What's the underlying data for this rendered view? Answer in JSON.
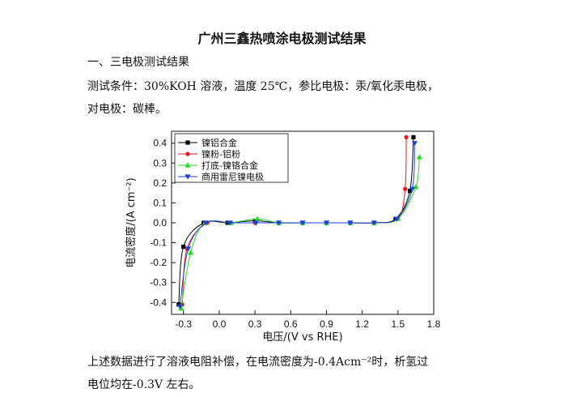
{
  "document": {
    "title": "广州三鑫热喷涂电极测试结果",
    "section_heading": "一、三电极测试结果",
    "conditions_line1": "测试条件：30%KOH 溶液，温度 25℃，参比电极：汞/氧化汞电极，",
    "conditions_line2": "对电极：碳棒。",
    "conclusion_line1": "上述数据进行了溶液电阻补偿，在电流密度为-0.4Acm⁻²时，析氢过",
    "conclusion_line2": "电位均在-0.3V 左右。"
  },
  "chart_data": {
    "type": "line",
    "xlabel": "电压/(V vs RHE)",
    "ylabel": "电流密度/(A cm⁻²)",
    "xlim": [
      -0.4,
      1.8
    ],
    "ylim": [
      -0.46,
      0.46
    ],
    "x_ticks": [
      -0.3,
      0.0,
      0.3,
      0.6,
      0.9,
      1.2,
      1.5,
      1.8
    ],
    "x_tick_labels": [
      "-0.3",
      "0.0",
      "0.3",
      "0.6",
      "0.9",
      "1.2",
      "1.5",
      "1.8"
    ],
    "y_ticks": [
      -0.4,
      -0.3,
      -0.2,
      -0.1,
      0.0,
      0.1,
      0.2,
      0.3,
      0.4
    ],
    "y_tick_labels": [
      "-0.4",
      "-0.3",
      "-0.2",
      "-0.1",
      "0.0",
      "0.1",
      "0.2",
      "0.3",
      "0.4"
    ],
    "legend_position": "top-left",
    "series": [
      {
        "name": "镍铝合金",
        "color": "#000000",
        "marker": "square",
        "points": [
          [
            -0.34,
            -0.41
          ],
          [
            -0.3,
            -0.12
          ],
          [
            -0.13,
            0.0
          ],
          [
            0.07,
            0.0
          ],
          [
            0.3,
            0.01
          ],
          [
            0.5,
            0.0
          ],
          [
            0.7,
            0.0
          ],
          [
            0.9,
            0.0
          ],
          [
            1.1,
            0.0
          ],
          [
            1.3,
            0.0
          ],
          [
            1.48,
            0.02
          ],
          [
            1.6,
            0.16
          ],
          [
            1.63,
            0.43
          ]
        ]
      },
      {
        "name": "镍粉-铝粉",
        "color": "#e31a1c",
        "marker": "circle",
        "points": [
          [
            -0.31,
            -0.41
          ],
          [
            -0.27,
            -0.13
          ],
          [
            -0.1,
            0.0
          ],
          [
            0.1,
            0.0
          ],
          [
            0.3,
            0.0
          ],
          [
            0.5,
            0.0
          ],
          [
            0.7,
            0.0
          ],
          [
            0.9,
            0.0
          ],
          [
            1.1,
            0.0
          ],
          [
            1.3,
            0.0
          ],
          [
            1.5,
            0.02
          ],
          [
            1.56,
            0.17
          ],
          [
            1.57,
            0.43
          ]
        ]
      },
      {
        "name": "打底-镍铬合金",
        "color": "#22dd22",
        "marker": "triangle-up",
        "points": [
          [
            -0.32,
            -0.43
          ],
          [
            -0.24,
            -0.15
          ],
          [
            -0.12,
            0.0
          ],
          [
            0.1,
            0.0
          ],
          [
            0.32,
            0.02
          ],
          [
            0.5,
            0.0
          ],
          [
            0.7,
            0.0
          ],
          [
            0.9,
            0.0
          ],
          [
            1.1,
            0.0
          ],
          [
            1.3,
            0.0
          ],
          [
            1.5,
            0.02
          ],
          [
            1.65,
            0.18
          ],
          [
            1.68,
            0.33
          ]
        ]
      },
      {
        "name": "商用雷尼镍电极",
        "color": "#1f3fd8",
        "marker": "triangle-down",
        "points": [
          [
            -0.33,
            -0.42
          ],
          [
            -0.26,
            -0.13
          ],
          [
            -0.11,
            0.0
          ],
          [
            0.09,
            0.0
          ],
          [
            0.31,
            0.0
          ],
          [
            0.5,
            0.0
          ],
          [
            0.7,
            0.0
          ],
          [
            0.9,
            0.0
          ],
          [
            1.1,
            0.0
          ],
          [
            1.3,
            0.0
          ],
          [
            1.49,
            0.02
          ],
          [
            1.62,
            0.17
          ],
          [
            1.64,
            0.4
          ]
        ]
      }
    ]
  }
}
